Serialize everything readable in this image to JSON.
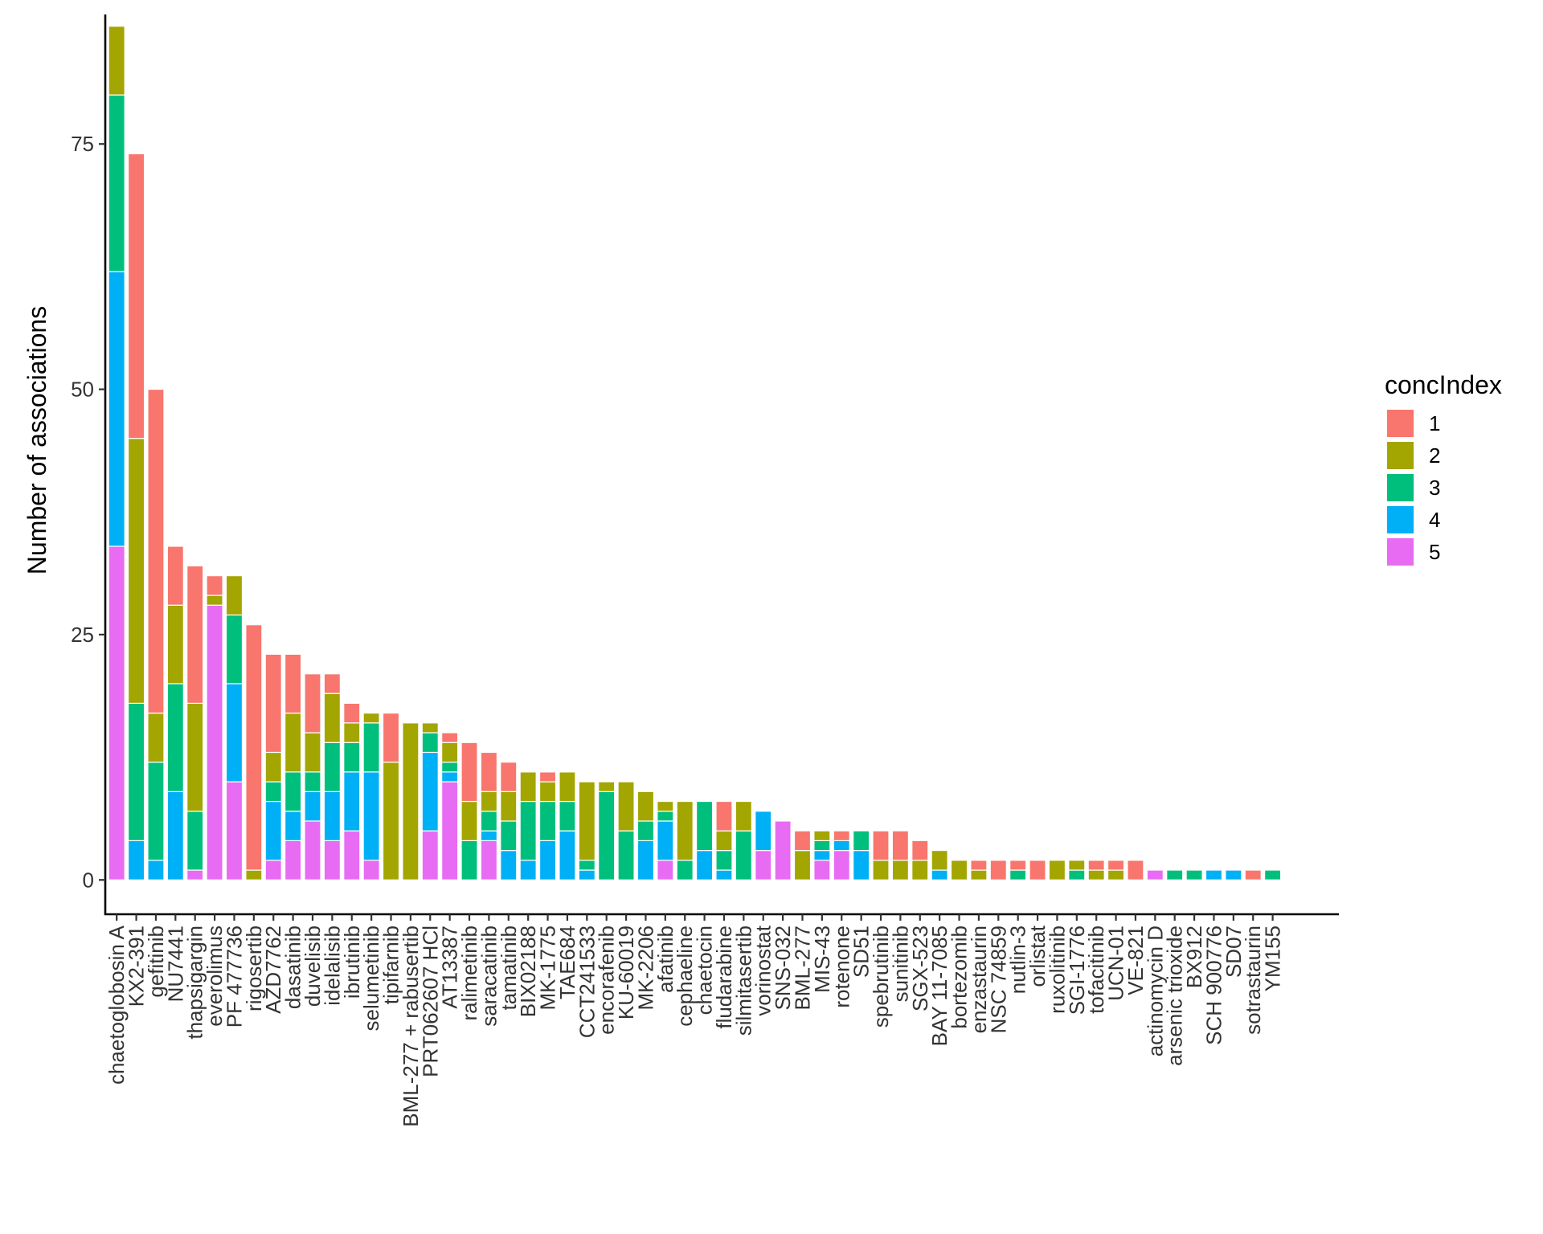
{
  "chart_data": {
    "type": "bar",
    "stacked": true,
    "ylabel": "Number of associations",
    "xlabel": "",
    "ylim": [
      -3.5,
      88.2
    ],
    "yticks": [
      0,
      25,
      50,
      75
    ],
    "grid": false,
    "legend": {
      "title": "concIndex",
      "placement": "right"
    },
    "categories": [
      "chaetoglobosin A",
      "KX2-391",
      "gefitinib",
      "NU7441",
      "thapsigargin",
      "everolimus",
      "PF 477736",
      "rigosertib",
      "AZD7762",
      "dasatinib",
      "duvelisib",
      "idelalisib",
      "ibrutinib",
      "selumetinib",
      "tipifarnib",
      "BML-277 + rabusertib",
      "PRT062607 HCl",
      "AT13387",
      "ralimetinib",
      "saracatinib",
      "tamatinib",
      "BIX02188",
      "MK-1775",
      "TAE684",
      "CCT241533",
      "encorafenib",
      "KU-60019",
      "MK-2206",
      "afatinib",
      "cephaeline",
      "chaetocin",
      "fludarabine",
      "silmitasertib",
      "vorinostat",
      "SNS-032",
      "BML-277",
      "MIS-43",
      "rotenone",
      "SD51",
      "spebrutinib",
      "sunitinib",
      "SGX-523",
      "BAY 11-7085",
      "bortezomib",
      "enzastaurin",
      "NSC 74859",
      "nutlin-3",
      "orlistat",
      "ruxolitinib",
      "SGI-1776",
      "tofacitinib",
      "UCN-01",
      "VE-821",
      "actinomycin D",
      "arsenic trioxide",
      "BX912",
      "SCH 900776",
      "SD07",
      "sotrastaurin",
      "YM155"
    ],
    "series": [
      {
        "name": "1",
        "color": "#F8766D",
        "values": [
          0,
          29,
          33,
          6,
          14,
          2,
          0,
          25,
          10,
          6,
          6,
          2,
          2,
          0,
          5,
          0,
          0,
          1,
          6,
          4,
          3,
          0,
          1,
          0,
          0,
          0,
          0,
          0,
          0,
          0,
          0,
          3,
          0,
          0,
          0,
          2,
          0,
          1,
          0,
          3,
          3,
          2,
          0,
          0,
          1,
          2,
          1,
          2,
          0,
          0,
          1,
          1,
          2,
          0,
          0,
          0,
          0,
          0,
          1,
          0
        ]
      },
      {
        "name": "2",
        "color": "#A3A500",
        "values": [
          7,
          27,
          5,
          8,
          11,
          1,
          4,
          1,
          3,
          6,
          4,
          5,
          2,
          1,
          12,
          16,
          1,
          2,
          4,
          2,
          3,
          3,
          2,
          3,
          8,
          1,
          5,
          3,
          1,
          6,
          0,
          2,
          3,
          0,
          0,
          3,
          1,
          0,
          0,
          2,
          2,
          2,
          2,
          2,
          1,
          0,
          0,
          0,
          2,
          1,
          1,
          1,
          0,
          0,
          0,
          0,
          0,
          0,
          0,
          0
        ]
      },
      {
        "name": "3",
        "color": "#00BF7D",
        "values": [
          18,
          14,
          10,
          11,
          6,
          0,
          7,
          0,
          2,
          4,
          2,
          5,
          3,
          5,
          0,
          0,
          2,
          1,
          4,
          2,
          3,
          6,
          4,
          3,
          1,
          9,
          5,
          2,
          1,
          2,
          5,
          2,
          5,
          0,
          0,
          0,
          1,
          0,
          2,
          0,
          0,
          0,
          0,
          0,
          0,
          0,
          1,
          0,
          0,
          1,
          0,
          0,
          0,
          0,
          1,
          1,
          0,
          0,
          0,
          1
        ]
      },
      {
        "name": "4",
        "color": "#00B0F6",
        "values": [
          28,
          4,
          2,
          9,
          0,
          0,
          10,
          0,
          6,
          3,
          3,
          5,
          6,
          9,
          0,
          0,
          8,
          1,
          0,
          1,
          3,
          2,
          4,
          5,
          1,
          0,
          0,
          4,
          4,
          0,
          3,
          1,
          0,
          4,
          0,
          0,
          1,
          1,
          3,
          0,
          0,
          0,
          1,
          0,
          0,
          0,
          0,
          0,
          0,
          0,
          0,
          0,
          0,
          0,
          0,
          0,
          1,
          1,
          0,
          0
        ]
      },
      {
        "name": "5",
        "color": "#E76BF3",
        "values": [
          34,
          0,
          0,
          0,
          1,
          28,
          10,
          0,
          2,
          4,
          6,
          4,
          5,
          2,
          0,
          0,
          5,
          10,
          0,
          4,
          0,
          0,
          0,
          0,
          0,
          0,
          0,
          0,
          2,
          0,
          0,
          0,
          0,
          3,
          6,
          0,
          2,
          3,
          0,
          0,
          0,
          0,
          0,
          0,
          0,
          0,
          0,
          0,
          0,
          0,
          0,
          0,
          0,
          1,
          0,
          0,
          0,
          0,
          0,
          0
        ]
      }
    ]
  }
}
